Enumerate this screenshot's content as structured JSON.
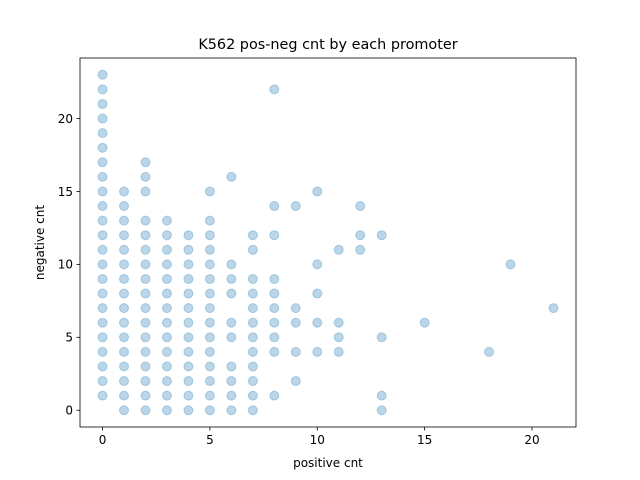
{
  "chart_data": {
    "type": "scatter",
    "title": "K562 pos-neg cnt by each promoter",
    "xlabel": "positive cnt",
    "ylabel": "negative cnt",
    "xlim": [
      -1.05,
      22.05
    ],
    "ylim": [
      -1.15,
      24.15
    ],
    "xticks": [
      0,
      5,
      10,
      15,
      20
    ],
    "yticks": [
      0,
      5,
      10,
      15,
      20
    ],
    "grid": false,
    "legend": "none",
    "marker_color": "#1f77b4",
    "marker_alpha": 0.3,
    "points": [
      [
        0,
        1
      ],
      [
        0,
        2
      ],
      [
        0,
        3
      ],
      [
        0,
        4
      ],
      [
        0,
        5
      ],
      [
        0,
        6
      ],
      [
        0,
        7
      ],
      [
        0,
        8
      ],
      [
        0,
        9
      ],
      [
        0,
        10
      ],
      [
        0,
        11
      ],
      [
        0,
        12
      ],
      [
        0,
        13
      ],
      [
        0,
        14
      ],
      [
        0,
        15
      ],
      [
        0,
        16
      ],
      [
        0,
        17
      ],
      [
        0,
        18
      ],
      [
        0,
        19
      ],
      [
        0,
        20
      ],
      [
        0,
        21
      ],
      [
        0,
        22
      ],
      [
        0,
        23
      ],
      [
        1,
        0
      ],
      [
        1,
        1
      ],
      [
        1,
        2
      ],
      [
        1,
        3
      ],
      [
        1,
        4
      ],
      [
        1,
        5
      ],
      [
        1,
        6
      ],
      [
        1,
        7
      ],
      [
        1,
        8
      ],
      [
        1,
        9
      ],
      [
        1,
        10
      ],
      [
        1,
        11
      ],
      [
        1,
        12
      ],
      [
        1,
        13
      ],
      [
        1,
        14
      ],
      [
        1,
        15
      ],
      [
        2,
        0
      ],
      [
        2,
        1
      ],
      [
        2,
        2
      ],
      [
        2,
        3
      ],
      [
        2,
        4
      ],
      [
        2,
        5
      ],
      [
        2,
        6
      ],
      [
        2,
        7
      ],
      [
        2,
        8
      ],
      [
        2,
        9
      ],
      [
        2,
        10
      ],
      [
        2,
        11
      ],
      [
        2,
        12
      ],
      [
        2,
        13
      ],
      [
        2,
        15
      ],
      [
        2,
        16
      ],
      [
        2,
        17
      ],
      [
        3,
        0
      ],
      [
        3,
        1
      ],
      [
        3,
        2
      ],
      [
        3,
        3
      ],
      [
        3,
        4
      ],
      [
        3,
        5
      ],
      [
        3,
        6
      ],
      [
        3,
        7
      ],
      [
        3,
        8
      ],
      [
        3,
        9
      ],
      [
        3,
        10
      ],
      [
        3,
        11
      ],
      [
        3,
        12
      ],
      [
        3,
        13
      ],
      [
        4,
        0
      ],
      [
        4,
        1
      ],
      [
        4,
        2
      ],
      [
        4,
        3
      ],
      [
        4,
        4
      ],
      [
        4,
        5
      ],
      [
        4,
        6
      ],
      [
        4,
        7
      ],
      [
        4,
        8
      ],
      [
        4,
        9
      ],
      [
        4,
        10
      ],
      [
        4,
        11
      ],
      [
        4,
        12
      ],
      [
        5,
        0
      ],
      [
        5,
        1
      ],
      [
        5,
        2
      ],
      [
        5,
        3
      ],
      [
        5,
        4
      ],
      [
        5,
        5
      ],
      [
        5,
        6
      ],
      [
        5,
        7
      ],
      [
        5,
        8
      ],
      [
        5,
        9
      ],
      [
        5,
        10
      ],
      [
        5,
        11
      ],
      [
        5,
        12
      ],
      [
        5,
        13
      ],
      [
        5,
        15
      ],
      [
        6,
        0
      ],
      [
        6,
        1
      ],
      [
        6,
        2
      ],
      [
        6,
        3
      ],
      [
        6,
        5
      ],
      [
        6,
        6
      ],
      [
        6,
        8
      ],
      [
        6,
        9
      ],
      [
        6,
        10
      ],
      [
        6,
        16
      ],
      [
        7,
        0
      ],
      [
        7,
        1
      ],
      [
        7,
        2
      ],
      [
        7,
        3
      ],
      [
        7,
        4
      ],
      [
        7,
        5
      ],
      [
        7,
        6
      ],
      [
        7,
        7
      ],
      [
        7,
        8
      ],
      [
        7,
        9
      ],
      [
        7,
        11
      ],
      [
        7,
        12
      ],
      [
        8,
        1
      ],
      [
        8,
        4
      ],
      [
        8,
        5
      ],
      [
        8,
        6
      ],
      [
        8,
        7
      ],
      [
        8,
        8
      ],
      [
        8,
        9
      ],
      [
        8,
        12
      ],
      [
        8,
        14
      ],
      [
        8,
        22
      ],
      [
        9,
        2
      ],
      [
        9,
        4
      ],
      [
        9,
        6
      ],
      [
        9,
        7
      ],
      [
        9,
        14
      ],
      [
        10,
        4
      ],
      [
        10,
        6
      ],
      [
        10,
        8
      ],
      [
        10,
        10
      ],
      [
        10,
        15
      ],
      [
        11,
        4
      ],
      [
        11,
        5
      ],
      [
        11,
        6
      ],
      [
        11,
        11
      ],
      [
        12,
        11
      ],
      [
        12,
        12
      ],
      [
        12,
        14
      ],
      [
        13,
        0
      ],
      [
        13,
        1
      ],
      [
        13,
        5
      ],
      [
        13,
        12
      ],
      [
        15,
        6
      ],
      [
        18,
        4
      ],
      [
        19,
        10
      ],
      [
        21,
        7
      ]
    ]
  }
}
